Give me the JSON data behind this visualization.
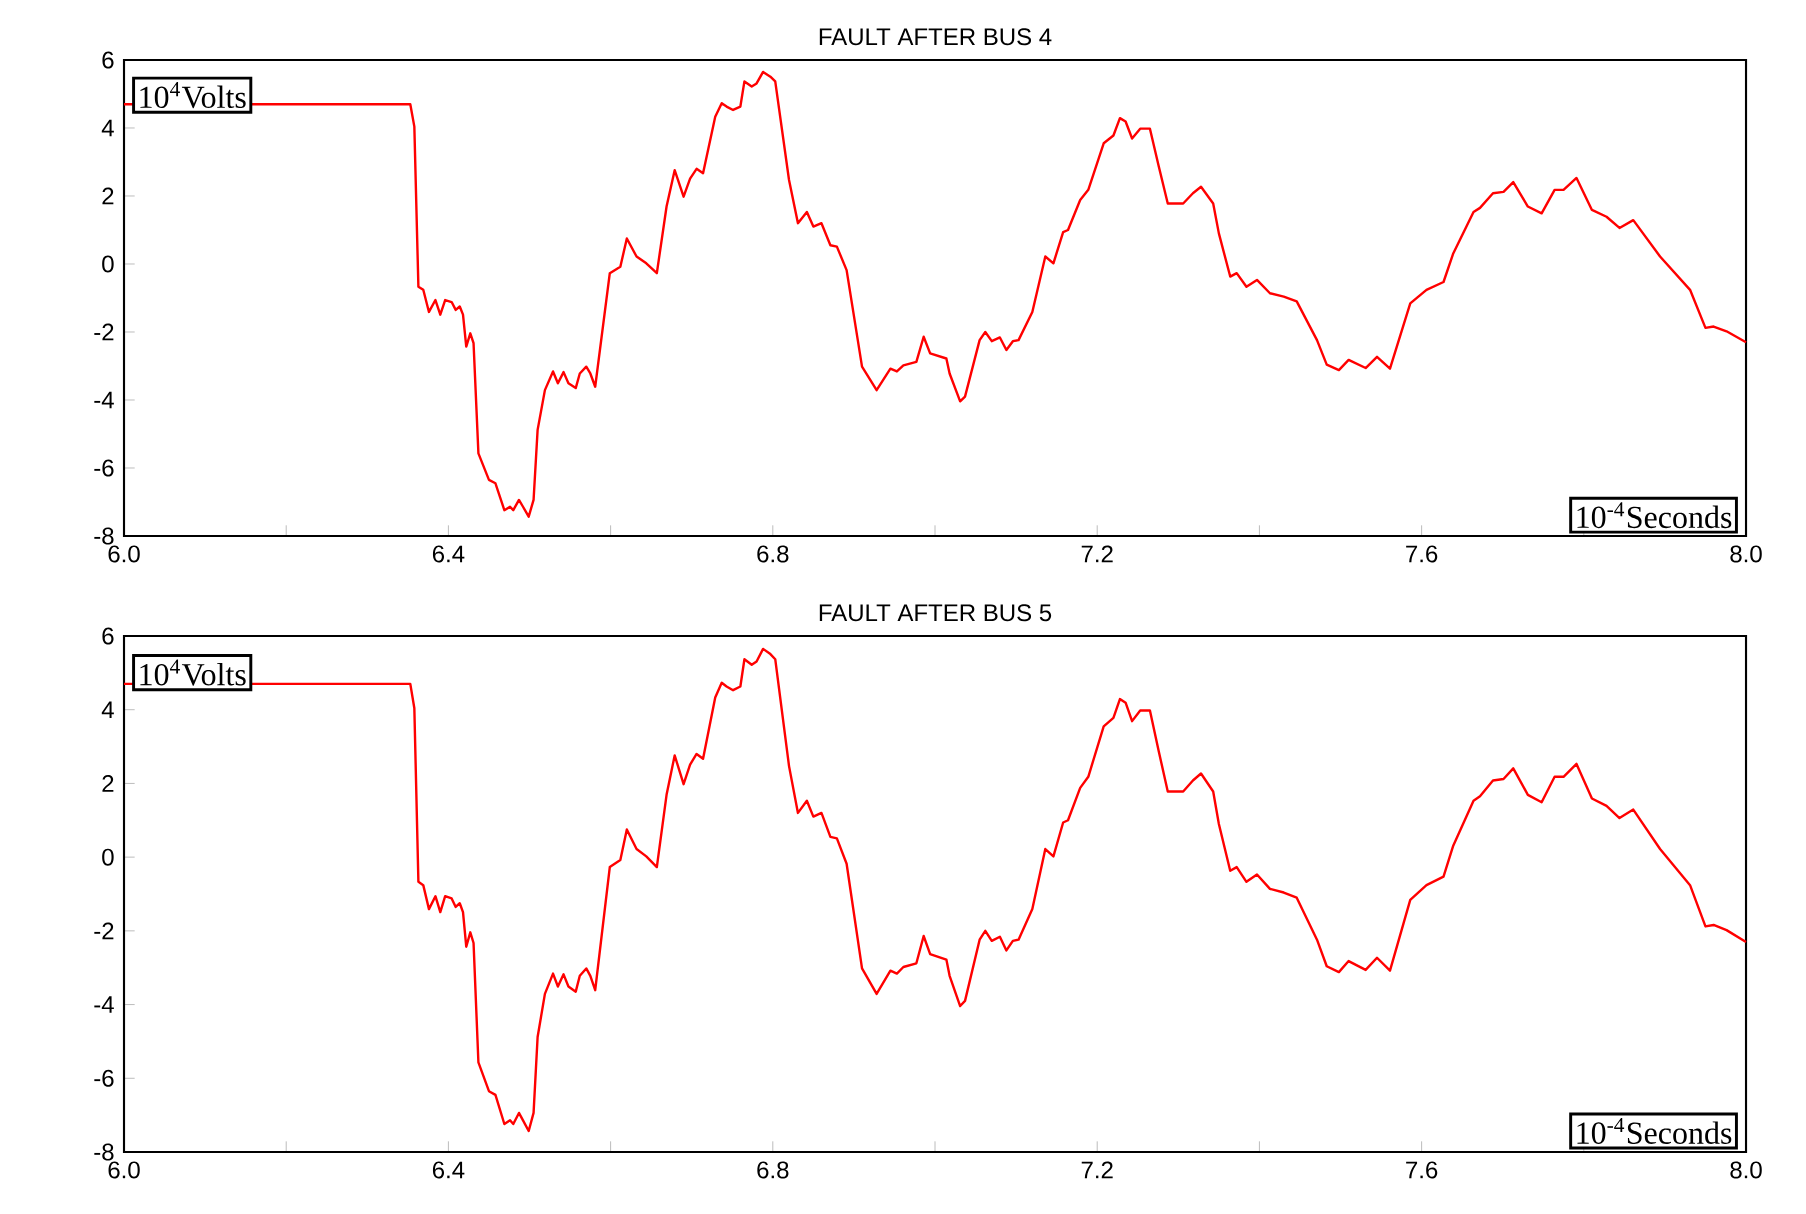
{
  "chart_data": [
    {
      "type": "line",
      "title": "FAULT AFTER BUS 4",
      "xlabel": "10$^{-4}$Seconds",
      "ylabel": "10$^{4}$Volts",
      "xlim": [
        6,
        8
      ],
      "ylim": [
        -8,
        6
      ],
      "xticks": [
        {
          "value": 6,
          "label": "6.0"
        },
        {
          "value": 6.2,
          "label": null
        },
        {
          "value": 6.4,
          "label": "6.4"
        },
        {
          "value": 6.6,
          "label": null
        },
        {
          "value": 6.8,
          "label": "6.8"
        },
        {
          "value": 7,
          "label": null
        },
        {
          "value": 7.2,
          "label": "7.2"
        },
        {
          "value": 7.4,
          "label": null
        },
        {
          "value": 7.6,
          "label": "7.6"
        },
        {
          "value": 7.8,
          "label": null
        },
        {
          "value": 8,
          "label": "8.0"
        }
      ],
      "yticks": [
        -8,
        -6,
        -4,
        -2,
        0,
        2,
        4,
        6
      ],
      "series": [
        {
          "color": "#ff0000",
          "x": [
            6.0,
            6.353,
            6.358,
            6.363,
            6.369,
            6.376,
            6.384,
            6.39,
            6.396,
            6.404,
            6.409,
            6.414,
            6.418,
            6.422,
            6.427,
            6.431,
            6.437,
            6.45,
            6.458,
            6.469,
            6.476,
            6.48,
            6.487,
            6.492,
            6.499,
            6.505,
            6.51,
            6.519,
            6.529,
            6.535,
            6.542,
            6.548,
            6.557,
            6.562,
            6.57,
            6.575,
            6.581,
            6.599,
            6.612,
            6.62,
            6.632,
            6.644,
            6.657,
            6.669,
            6.679,
            6.69,
            6.698,
            6.706,
            6.714,
            6.729,
            6.737,
            6.743,
            6.751,
            6.76,
            6.765,
            6.774,
            6.78,
            6.788,
            6.797,
            6.803,
            6.82,
            6.831,
            6.842,
            6.85,
            6.86,
            6.871,
            6.879,
            6.891,
            6.91,
            6.928,
            6.945,
            6.953,
            6.961,
            6.977,
            6.986,
            6.994,
            7.014,
            7.018,
            7.031,
            7.037,
            7.055,
            7.062,
            7.07,
            7.08,
            7.088,
            7.096,
            7.103,
            7.12,
            7.136,
            7.146,
            7.158,
            7.164,
            7.179,
            7.189,
            7.208,
            7.22,
            7.228,
            7.235,
            7.243,
            7.253,
            7.265,
            7.276,
            7.287,
            7.306,
            7.318,
            7.328,
            7.343,
            7.35,
            7.364,
            7.372,
            7.384,
            7.397,
            7.413,
            7.43,
            7.446,
            7.471,
            7.483,
            7.498,
            7.51,
            7.531,
            7.545,
            7.561,
            7.586,
            7.606,
            7.627,
            7.639,
            7.664,
            7.672,
            7.688,
            7.701,
            7.713,
            7.731,
            7.748,
            7.764,
            7.775,
            7.791,
            7.81,
            7.828,
            7.844,
            7.861,
            7.894,
            7.931,
            7.95,
            7.96,
            7.976,
            8.0
          ],
          "values": [
            4.7,
            4.7,
            4.04,
            -0.67,
            -0.76,
            -1.41,
            -1.06,
            -1.49,
            -1.06,
            -1.12,
            -1.35,
            -1.25,
            -1.49,
            -2.43,
            -2.04,
            -2.33,
            -5.57,
            -6.35,
            -6.45,
            -7.24,
            -7.14,
            -7.24,
            -6.94,
            -7.14,
            -7.43,
            -6.94,
            -4.88,
            -3.71,
            -3.16,
            -3.51,
            -3.18,
            -3.51,
            -3.65,
            -3.22,
            -3.02,
            -3.22,
            -3.61,
            -0.27,
            -0.08,
            0.75,
            0.22,
            0.02,
            -0.27,
            1.69,
            2.76,
            1.98,
            2.51,
            2.8,
            2.67,
            4.33,
            4.73,
            4.63,
            4.53,
            4.63,
            5.37,
            5.22,
            5.31,
            5.65,
            5.51,
            5.37,
            2.47,
            1.2,
            1.53,
            1.1,
            1.2,
            0.55,
            0.51,
            -0.18,
            -3.02,
            -3.71,
            -3.08,
            -3.16,
            -2.98,
            -2.88,
            -2.14,
            -2.63,
            -2.78,
            -3.22,
            -4.04,
            -3.9,
            -2.24,
            -2.0,
            -2.27,
            -2.16,
            -2.53,
            -2.27,
            -2.24,
            -1.41,
            0.22,
            0.02,
            0.94,
            1.0,
            1.88,
            2.18,
            3.55,
            3.78,
            4.29,
            4.19,
            3.69,
            3.98,
            3.98,
            2.86,
            1.78,
            1.78,
            2.08,
            2.27,
            1.78,
            0.9,
            -0.37,
            -0.27,
            -0.67,
            -0.47,
            -0.86,
            -0.96,
            -1.1,
            -2.24,
            -2.96,
            -3.12,
            -2.82,
            -3.06,
            -2.73,
            -3.08,
            -1.16,
            -0.76,
            -0.53,
            0.31,
            1.53,
            1.65,
            2.08,
            2.12,
            2.41,
            1.69,
            1.49,
            2.18,
            2.18,
            2.53,
            1.59,
            1.39,
            1.06,
            1.29,
            0.22,
            -0.76,
            -1.88,
            -1.84,
            -1.98,
            -2.3
          ]
        }
      ]
    },
    {
      "type": "line",
      "title": "FAULT AFTER BUS 5",
      "xlabel": "10$^{-4}$Seconds",
      "ylabel": "10$^{4}$Volts",
      "xlim": [
        6,
        8
      ],
      "ylim": [
        -8,
        6
      ],
      "xticks": [
        {
          "value": 6,
          "label": "6.0"
        },
        {
          "value": 6.2,
          "label": null
        },
        {
          "value": 6.4,
          "label": "6.4"
        },
        {
          "value": 6.6,
          "label": null
        },
        {
          "value": 6.8,
          "label": "6.8"
        },
        {
          "value": 7,
          "label": null
        },
        {
          "value": 7.2,
          "label": "7.2"
        },
        {
          "value": 7.4,
          "label": null
        },
        {
          "value": 7.6,
          "label": "7.6"
        },
        {
          "value": 7.8,
          "label": null
        },
        {
          "value": 8,
          "label": "8.0"
        }
      ],
      "yticks": [
        -8,
        -6,
        -4,
        -2,
        0,
        2,
        4,
        6
      ],
      "series": [
        {
          "color": "#ff0000",
          "x": [
            6.0,
            6.353,
            6.358,
            6.363,
            6.369,
            6.376,
            6.384,
            6.39,
            6.396,
            6.404,
            6.409,
            6.414,
            6.418,
            6.422,
            6.427,
            6.431,
            6.437,
            6.45,
            6.458,
            6.469,
            6.476,
            6.48,
            6.487,
            6.492,
            6.499,
            6.505,
            6.51,
            6.519,
            6.529,
            6.535,
            6.542,
            6.548,
            6.557,
            6.562,
            6.57,
            6.575,
            6.581,
            6.599,
            6.612,
            6.62,
            6.632,
            6.644,
            6.657,
            6.669,
            6.679,
            6.69,
            6.698,
            6.706,
            6.714,
            6.729,
            6.737,
            6.743,
            6.751,
            6.76,
            6.765,
            6.774,
            6.78,
            6.788,
            6.797,
            6.803,
            6.82,
            6.831,
            6.842,
            6.85,
            6.86,
            6.871,
            6.879,
            6.891,
            6.91,
            6.928,
            6.945,
            6.953,
            6.961,
            6.977,
            6.986,
            6.994,
            7.014,
            7.018,
            7.031,
            7.037,
            7.055,
            7.062,
            7.07,
            7.08,
            7.088,
            7.096,
            7.103,
            7.12,
            7.136,
            7.146,
            7.158,
            7.164,
            7.179,
            7.189,
            7.208,
            7.22,
            7.228,
            7.235,
            7.243,
            7.253,
            7.265,
            7.276,
            7.287,
            7.306,
            7.318,
            7.328,
            7.343,
            7.35,
            7.364,
            7.372,
            7.384,
            7.397,
            7.413,
            7.43,
            7.446,
            7.471,
            7.483,
            7.498,
            7.51,
            7.531,
            7.545,
            7.561,
            7.586,
            7.606,
            7.627,
            7.639,
            7.664,
            7.672,
            7.688,
            7.701,
            7.713,
            7.731,
            7.748,
            7.764,
            7.775,
            7.791,
            7.81,
            7.828,
            7.844,
            7.861,
            7.894,
            7.931,
            7.95,
            7.96,
            7.976,
            8.0
          ],
          "values": [
            4.7,
            4.7,
            4.04,
            -0.67,
            -0.76,
            -1.41,
            -1.06,
            -1.49,
            -1.06,
            -1.12,
            -1.35,
            -1.25,
            -1.49,
            -2.43,
            -2.04,
            -2.33,
            -5.57,
            -6.35,
            -6.45,
            -7.24,
            -7.14,
            -7.24,
            -6.94,
            -7.14,
            -7.43,
            -6.94,
            -4.88,
            -3.71,
            -3.16,
            -3.51,
            -3.18,
            -3.51,
            -3.65,
            -3.22,
            -3.02,
            -3.22,
            -3.61,
            -0.27,
            -0.08,
            0.75,
            0.22,
            0.02,
            -0.27,
            1.69,
            2.76,
            1.98,
            2.51,
            2.8,
            2.67,
            4.33,
            4.73,
            4.63,
            4.53,
            4.63,
            5.37,
            5.22,
            5.31,
            5.65,
            5.51,
            5.37,
            2.47,
            1.2,
            1.53,
            1.1,
            1.2,
            0.55,
            0.51,
            -0.18,
            -3.02,
            -3.71,
            -3.08,
            -3.16,
            -2.98,
            -2.88,
            -2.14,
            -2.63,
            -2.78,
            -3.22,
            -4.04,
            -3.9,
            -2.24,
            -2.0,
            -2.27,
            -2.16,
            -2.53,
            -2.27,
            -2.24,
            -1.41,
            0.22,
            0.02,
            0.94,
            1.0,
            1.88,
            2.18,
            3.55,
            3.78,
            4.29,
            4.19,
            3.69,
            3.98,
            3.98,
            2.86,
            1.78,
            1.78,
            2.08,
            2.27,
            1.78,
            0.9,
            -0.37,
            -0.27,
            -0.67,
            -0.47,
            -0.86,
            -0.96,
            -1.1,
            -2.24,
            -2.96,
            -3.12,
            -2.82,
            -3.06,
            -2.73,
            -3.08,
            -1.16,
            -0.76,
            -0.53,
            0.31,
            1.53,
            1.65,
            2.08,
            2.12,
            2.41,
            1.69,
            1.49,
            2.18,
            2.18,
            2.53,
            1.59,
            1.39,
            1.06,
            1.29,
            0.22,
            -0.76,
            -1.88,
            -1.84,
            -1.98,
            -2.3
          ]
        }
      ]
    }
  ]
}
